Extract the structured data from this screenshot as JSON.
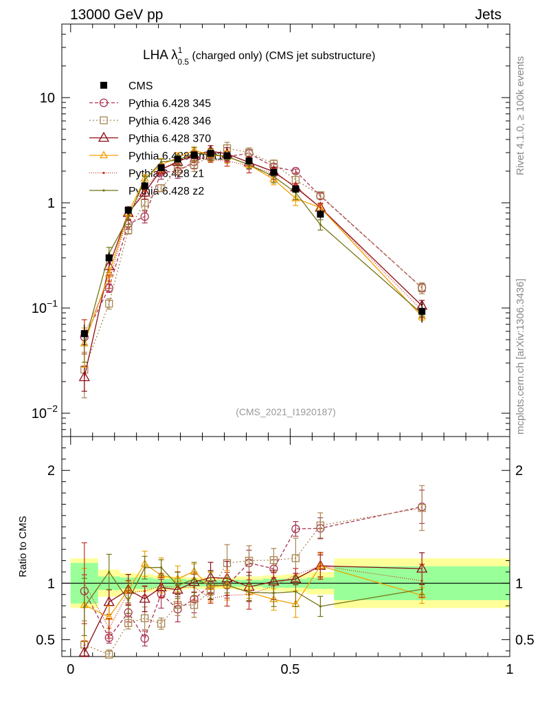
{
  "header": {
    "left": "13000 GeV pp",
    "right": "Jets"
  },
  "side_labels": {
    "rivet": "Rivet 4.1.0, ≥ 100k events",
    "mcplots": "mcplots.cern.ch [arXiv:1306.3436]"
  },
  "chart_data": [
    {
      "type": "line",
      "title_main": "LHA λ",
      "title_sup": "1",
      "title_sub": "0.5",
      "title_rest": " (charged only) (CMS jet substructure)",
      "watermark": "(CMS_2021_I1920187)",
      "yscale": "log",
      "ylim": [
        0.006,
        50
      ],
      "xlim": [
        -0.02,
        1.0
      ],
      "yticks": [
        {
          "v": 0.01,
          "base": "10",
          "exp": "−2"
        },
        {
          "v": 0.1,
          "base": "10",
          "exp": "−1"
        },
        {
          "v": 1,
          "base": "1",
          "exp": ""
        },
        {
          "v": 10,
          "base": "10",
          "exp": ""
        }
      ],
      "bins": [
        0,
        0.0625,
        0.1125,
        0.15,
        0.1875,
        0.225,
        0.2625,
        0.3,
        0.3375,
        0.375,
        0.4375,
        0.4875,
        0.5375,
        0.6,
        1.0
      ],
      "x": [
        0.0313,
        0.0875,
        0.1313,
        0.1688,
        0.2063,
        0.2438,
        0.2813,
        0.3188,
        0.3563,
        0.4063,
        0.4625,
        0.5125,
        0.5688,
        0.8
      ],
      "data": {
        "name": "CMS",
        "values": [
          0.057,
          0.3,
          0.85,
          1.45,
          2.15,
          2.6,
          2.85,
          2.95,
          2.8,
          2.5,
          1.95,
          1.35,
          0.78,
          0.093
        ],
        "stat_rel": [
          0.18,
          0.06,
          0.05,
          0.05,
          0.04,
          0.04,
          0.03,
          0.03,
          0.03,
          0.03,
          0.04,
          0.04,
          0.05,
          0.15
        ],
        "tot_rel": [
          0.22,
          0.12,
          0.09,
          0.08,
          0.07,
          0.06,
          0.05,
          0.05,
          0.05,
          0.06,
          0.07,
          0.08,
          0.1,
          0.22
        ]
      },
      "series": [
        {
          "name": "Pythia 6.428 345",
          "color": "#a83250",
          "marker": "circle",
          "dash": "5,3",
          "values": [
            0.053,
            0.155,
            0.63,
            0.74,
            1.95,
            2.0,
            2.45,
            2.9,
            2.75,
            2.95,
            2.2,
            2.0,
            1.16,
            0.156
          ]
        },
        {
          "name": "Pythia 6.428 346",
          "color": "#a88450",
          "marker": "square",
          "dash": "2,3",
          "values": [
            0.026,
            0.11,
            0.55,
            1.0,
            1.38,
            2.1,
            2.3,
            2.75,
            3.3,
            3.0,
            2.35,
            1.65,
            1.18,
            0.155
          ]
        },
        {
          "name": "Pythia 6.428 370",
          "color": "#8b0a14",
          "marker": "triangle",
          "dash": "",
          "values": [
            0.022,
            0.25,
            0.8,
            1.25,
            2.07,
            2.45,
            2.88,
            3.1,
            2.92,
            2.42,
            1.98,
            1.4,
            0.9,
            0.105
          ]
        },
        {
          "name": "Pythia 6.428 ambt1",
          "color": "#f0a000",
          "marker": "triangle-small",
          "dash": "",
          "values": [
            0.046,
            0.21,
            0.8,
            1.7,
            2.3,
            2.7,
            3.15,
            2.85,
            2.75,
            2.3,
            1.67,
            1.1,
            0.9,
            0.083
          ]
        },
        {
          "name": "Pythia 6.428 z1",
          "color": "#c0301e",
          "marker": "dot",
          "dash": "1,2",
          "values": [
            0.057,
            0.18,
            0.78,
            1.35,
            2.1,
            2.5,
            2.75,
            2.55,
            2.5,
            2.25,
            1.9,
            1.45,
            0.9,
            0.095
          ]
        },
        {
          "name": "Pythia 6.428 z2",
          "color": "#727212",
          "marker": "dot",
          "dash": "",
          "values": [
            0.045,
            0.33,
            0.72,
            1.65,
            2.45,
            2.55,
            2.95,
            2.9,
            2.75,
            2.3,
            1.78,
            1.25,
            0.62,
            0.088
          ]
        }
      ]
    },
    {
      "type": "line",
      "ylabel": "Ratio to CMS",
      "ylim": [
        0.35,
        2.3
      ],
      "xlim": [
        -0.02,
        1.0
      ],
      "yticks": [
        0.5,
        1,
        2
      ],
      "xticks": [
        0,
        0.5,
        1
      ],
      "xtick_labels": [
        "0",
        "0.5",
        "1"
      ],
      "reference": 1
    }
  ]
}
